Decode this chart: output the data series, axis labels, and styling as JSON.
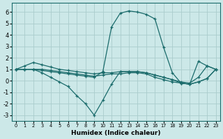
{
  "xlabel": "Humidex (Indice chaleur)",
  "bg_color": "#cce8e8",
  "grid_color": "#aacccc",
  "line_color": "#1a6b6b",
  "xlim": [
    -0.5,
    23.5
  ],
  "ylim": [
    -3.5,
    6.8
  ],
  "xticks": [
    0,
    1,
    2,
    3,
    4,
    5,
    6,
    7,
    8,
    9,
    10,
    11,
    12,
    13,
    14,
    15,
    16,
    17,
    18,
    19,
    20,
    21,
    22,
    23
  ],
  "yticks": [
    -3,
    -2,
    -1,
    0,
    1,
    2,
    3,
    4,
    5,
    6
  ],
  "series": [
    {
      "x": [
        0,
        1,
        2,
        3,
        4,
        5,
        6,
        7,
        8,
        9,
        10,
        11,
        12,
        13,
        14,
        15,
        16,
        17,
        18,
        19,
        20,
        21,
        22,
        23
      ],
      "y": [
        1.0,
        1.3,
        1.6,
        1.4,
        1.2,
        1.0,
        0.9,
        0.8,
        0.7,
        0.6,
        0.7,
        0.7,
        0.8,
        0.8,
        0.8,
        0.7,
        0.5,
        0.3,
        0.1,
        -0.1,
        -0.2,
        0.3,
        1.3,
        1.0
      ]
    },
    {
      "x": [
        0,
        1,
        2,
        3,
        4,
        5,
        6,
        7,
        8,
        9,
        10,
        11,
        12,
        13,
        14,
        15,
        16,
        17,
        18,
        19,
        20,
        21,
        22,
        23
      ],
      "y": [
        1.0,
        1.0,
        1.0,
        1.0,
        0.9,
        0.8,
        0.7,
        0.6,
        0.5,
        0.4,
        0.5,
        0.6,
        0.6,
        0.7,
        0.7,
        0.6,
        0.3,
        0.1,
        -0.1,
        -0.2,
        -0.3,
        -0.1,
        0.2,
        1.0
      ]
    },
    {
      "x": [
        0,
        1,
        2,
        3,
        4,
        5,
        6,
        7,
        8,
        9,
        10,
        11,
        12,
        13,
        14,
        15,
        16,
        17,
        18,
        19,
        20,
        21,
        22,
        23
      ],
      "y": [
        1.0,
        1.0,
        1.0,
        0.9,
        0.8,
        0.7,
        0.6,
        0.5,
        0.4,
        0.3,
        0.8,
        4.7,
        5.9,
        6.1,
        6.0,
        5.8,
        5.4,
        2.9,
        0.7,
        -0.2,
        -0.3,
        1.7,
        1.3,
        1.0
      ]
    },
    {
      "x": [
        0,
        1,
        2,
        3,
        4,
        5,
        6,
        7,
        8,
        9,
        10,
        11,
        12,
        13,
        14,
        15,
        16,
        17,
        18,
        19,
        20,
        21,
        22,
        23
      ],
      "y": [
        1.0,
        1.0,
        1.0,
        0.7,
        0.3,
        -0.1,
        -0.5,
        -1.3,
        -2.0,
        -3.0,
        -1.7,
        -0.3,
        0.8,
        0.8,
        0.8,
        0.7,
        0.5,
        0.3,
        0.1,
        -0.2,
        -0.3,
        -0.1,
        0.2,
        1.0
      ]
    }
  ]
}
